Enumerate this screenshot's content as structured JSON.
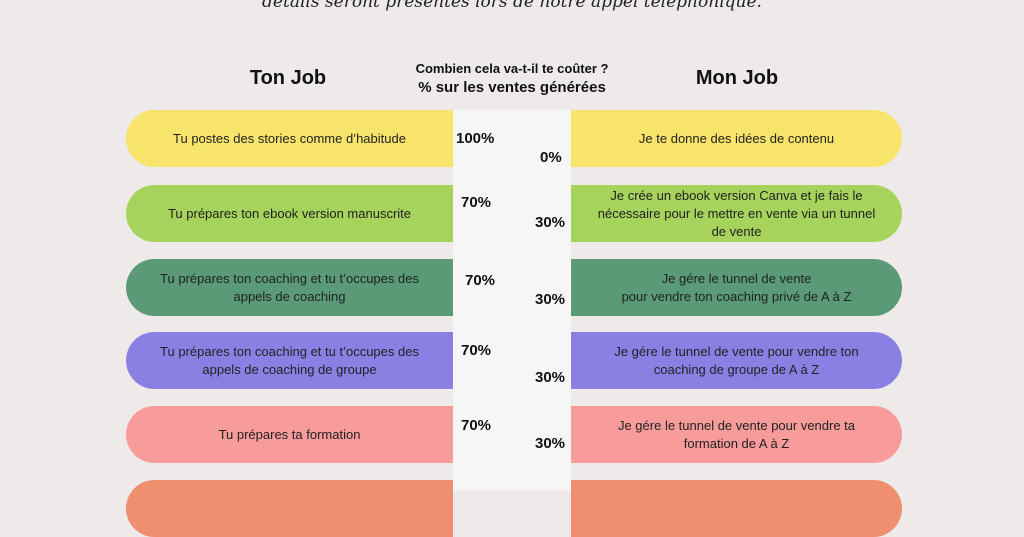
{
  "header": {
    "top_text": "détails seront présentés lors de notre appel téléphonique.",
    "left_title": "Ton Job",
    "right_title": "Mon Job",
    "mid_question": "Combien cela va-t-il te coûter ?",
    "mid_subtitle": "% sur les ventes générées"
  },
  "rows": [
    {
      "left": "Tu postes des stories  comme d’habitude",
      "left_pct": "100%",
      "right_pct": "0%",
      "right": "Je te donne des idées de contenu",
      "color": "#f8e36b"
    },
    {
      "left": "Tu prépares ton ebook version manuscrite",
      "left_pct": "70%",
      "right_pct": "30%",
      "right": "Je crée un ebook version Canva et je fais le nécessaire pour le mettre en vente via un tunnel de vente",
      "color": "#a6d35c"
    },
    {
      "left": "Tu prépares ton coaching  et tu t’occupes des appels de coaching",
      "left_pct": "70%",
      "right_pct": "30%",
      "right": "Je gére le tunnel de vente\npour vendre ton coaching privé de A à Z",
      "color": "#5a9a77"
    },
    {
      "left": "Tu prépares ton coaching et tu t’occupes des appels de coaching de groupe",
      "left_pct": "70%",
      "right_pct": "30%",
      "right": "Je gére le tunnel de vente pour vendre ton coaching de groupe de A à Z",
      "color": "#8a80e4"
    },
    {
      "left": "Tu prépares ta formation",
      "left_pct": "70%",
      "right_pct": "30%",
      "right": "Je gére le tunnel de vente pour vendre ta formation de A à Z",
      "color": "#f79b9b"
    },
    {
      "left": "",
      "left_pct": "",
      "right_pct": "",
      "right": "",
      "color": "#ef8f6f"
    }
  ]
}
